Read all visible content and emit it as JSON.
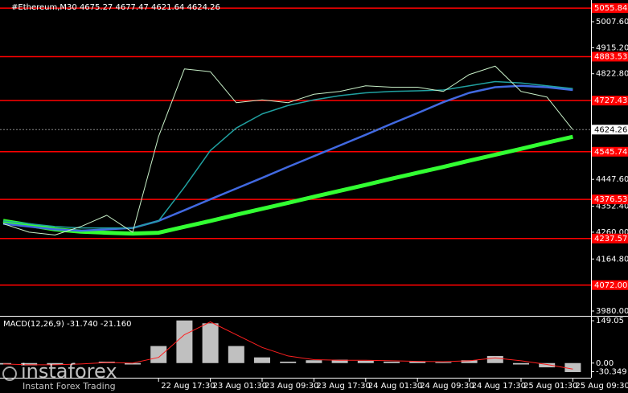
{
  "chart_data": [
    {
      "type": "line",
      "title": "#Ethereum,M30  4675.27 4677.47 4621.64 4624.26",
      "categories": [
        null,
        null,
        null,
        null,
        null,
        null,
        "22 Aug 17:30",
        null,
        "23 Aug 01:30",
        null,
        "23 Aug 09:30",
        null,
        "23 Aug 17:30",
        null,
        "24 Aug 01:30",
        null,
        "24 Aug 09:30",
        null,
        "24 Aug 17:30",
        null,
        "25 Aug 01:30",
        null,
        "25 Aug 09:30"
      ],
      "series": [
        {
          "color": "#32ff32",
          "line_width": 5,
          "values": [
            4300,
            4285,
            4270,
            4262,
            4258,
            4255,
            4258,
            4279,
            4300,
            4322,
            4343,
            4364,
            4386,
            4407,
            4428,
            4450,
            4471,
            4492,
            4514,
            4535,
            4556,
            4578,
            4599
          ]
        },
        {
          "color": "#4169e1",
          "line_width": 2.5,
          "values": [
            4290,
            4280,
            4270,
            4265,
            4270,
            4275,
            4300,
            4338,
            4377,
            4415,
            4453,
            4492,
            4530,
            4568,
            4606,
            4645,
            4683,
            4722,
            4755,
            4775,
            4780,
            4775,
            4765
          ]
        },
        {
          "color": "#20a0a0",
          "line_width": 1.5,
          "values": [
            4300,
            4290,
            4280,
            4275,
            4275,
            4275,
            4300,
            4420,
            4550,
            4630,
            4680,
            4710,
            4730,
            4745,
            4755,
            4760,
            4762,
            4765,
            4780,
            4795,
            4790,
            4780,
            4770
          ]
        },
        {
          "color": "#c8f0c8",
          "line_width": 1,
          "values": [
            4290,
            4260,
            4250,
            4280,
            4320,
            4260,
            4600,
            4840,
            4830,
            4720,
            4730,
            4720,
            4750,
            4760,
            4780,
            4775,
            4775,
            4760,
            4820,
            4850,
            4760,
            4740,
            4624
          ]
        }
      ],
      "ylim": [
        3965.7,
        5084.7
      ],
      "yticks": [
        {
          "value": 5007.6,
          "label": "5007.60"
        },
        {
          "value": 4915.2,
          "label": "4915.20"
        },
        {
          "value": 4822.8,
          "label": "4822.80"
        },
        {
          "value": 4447.6,
          "label": "4447.60"
        },
        {
          "value": 4352.4,
          "label": "4352.40"
        },
        {
          "value": 4260,
          "label": "4260.00"
        },
        {
          "value": 4164.8,
          "label": "4164.80"
        },
        {
          "value": 3980,
          "label": "3980.00"
        }
      ],
      "levels": [
        5055.84,
        4883.53,
        4727.43,
        4545.74,
        4376.53,
        4237.57,
        {
          "value": 4072,
          "label": "4072.00"
        }
      ],
      "level_color": "#ff0000",
      "last": 4624.26,
      "grid": false
    },
    {
      "type": "bar",
      "title": "MACD(12,26,9) -31.740 -21.160",
      "values": [
        -5,
        -8,
        -5,
        0,
        5,
        -5,
        60,
        150,
        140,
        60,
        20,
        5,
        10,
        12,
        8,
        5,
        5,
        3,
        10,
        25,
        -5,
        -15,
        -31.74
      ],
      "color": "#c0c0c0",
      "series": [
        {
          "color": "#ff2020",
          "line_width": 1,
          "values": [
            -3,
            -6,
            -6,
            -3,
            2,
            0,
            20,
            100,
            145,
            100,
            55,
            25,
            12,
            10,
            10,
            8,
            6,
            5,
            8,
            18,
            8,
            -5,
            -21.16
          ]
        }
      ],
      "ylim": [
        -51.6,
        163.4
      ],
      "yticks": [
        149.05,
        {
          "value": 0,
          "label": "0.00"
        },
        -30.349
      ],
      "grid": false
    }
  ],
  "watermark": {
    "brand": "instaforex",
    "tagline": "Instant Forex Trading"
  }
}
